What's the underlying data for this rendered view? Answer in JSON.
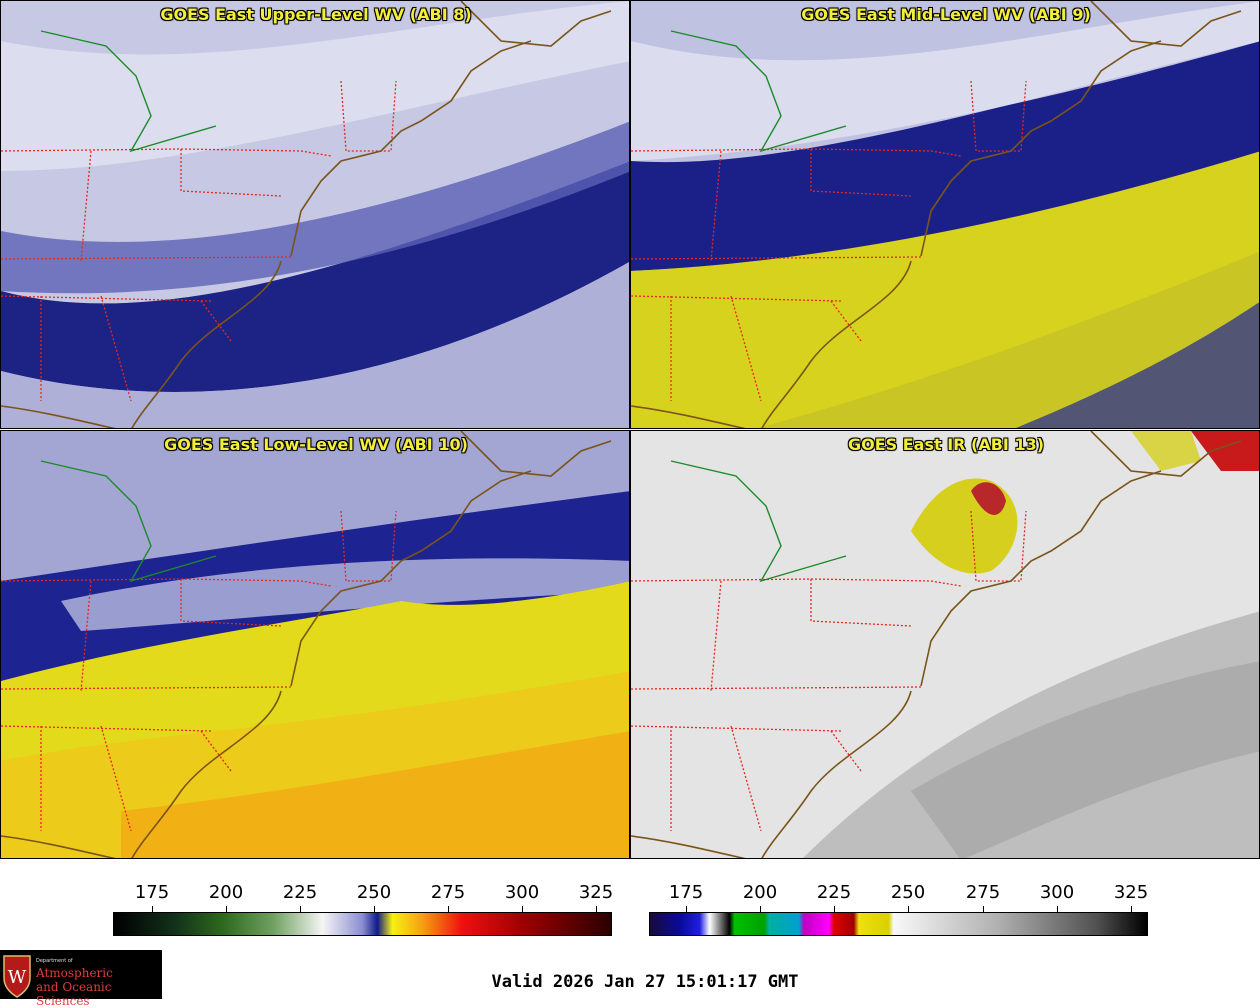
{
  "panels": [
    {
      "title": "GOES East Upper-Level WV (ABI 8)"
    },
    {
      "title": "GOES East Mid-Level WV (ABI 9)"
    },
    {
      "title": "GOES East Low-Level WV (ABI 10)"
    },
    {
      "title": "GOES East IR (ABI 13)"
    }
  ],
  "colorbars": [
    {
      "ticks": [
        "175",
        "200",
        "225",
        "250",
        "275",
        "300",
        "325"
      ]
    },
    {
      "ticks": [
        "175",
        "200",
        "225",
        "250",
        "275",
        "300",
        "325"
      ]
    }
  ],
  "valid_time": "Valid 2026 Jan 27 15:01:17 GMT",
  "logo": {
    "line0": "Department of",
    "line1": "Atmospheric",
    "line2": "and Oceanic Sciences",
    "emblem": "W"
  },
  "colors": {
    "state_lines": "#e8261e",
    "coast": "#7a5418",
    "lake_border": "#1b8a2a",
    "title_text": "#f2ee3a"
  }
}
